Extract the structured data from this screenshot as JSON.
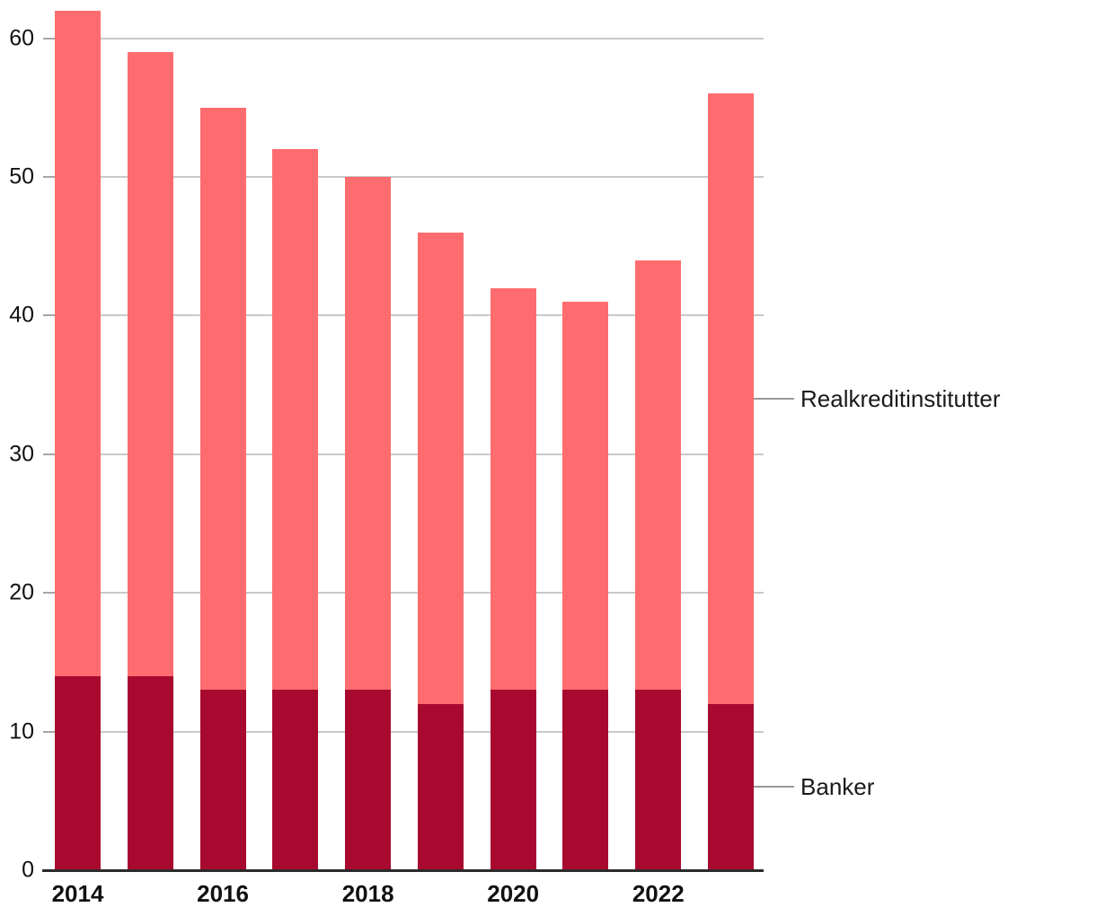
{
  "chart_data": {
    "type": "bar",
    "stacked": true,
    "title": "",
    "xlabel": "",
    "ylabel": "",
    "categories": [
      "2014",
      "2015",
      "2016",
      "2017",
      "2018",
      "2019",
      "2020",
      "2021",
      "2022",
      "2023"
    ],
    "series": [
      {
        "name": "Banker",
        "color": "#a80a2f",
        "values": [
          14,
          14,
          13,
          13,
          13,
          12,
          13,
          13,
          13,
          12
        ]
      },
      {
        "name": "Realkreditinstitutter",
        "color": "#ff6c6f",
        "values": [
          48,
          45,
          42,
          39,
          37,
          34,
          29,
          28,
          31,
          44
        ]
      }
    ],
    "stack_totals": [
      62,
      59,
      55,
      52,
      50,
      46,
      42,
      41,
      44,
      56
    ],
    "y_ticks": [
      0,
      10,
      20,
      30,
      40,
      50,
      60
    ],
    "x_tick_labels": [
      "2014",
      "2016",
      "2018",
      "2020",
      "2022"
    ],
    "ylim": [
      0,
      62.2
    ],
    "grid": "horizontal-only",
    "legend_position": "right-direct-labels",
    "direct_labels": [
      {
        "text": "Realkreditinstitutter",
        "attached_series": "Realkreditinstitutter"
      },
      {
        "text": "Banker",
        "attached_series": "Banker"
      }
    ],
    "palette": {
      "banker_dark_red": "#a80a2f",
      "realkredit_salmon": "#ff6c6f",
      "gridline_gray": "#c9c9c9",
      "tick_gray": "#a6a6a6",
      "axis_dark": "#2b2b2b",
      "leader_gray": "#999999",
      "text_color": "#111111"
    }
  }
}
